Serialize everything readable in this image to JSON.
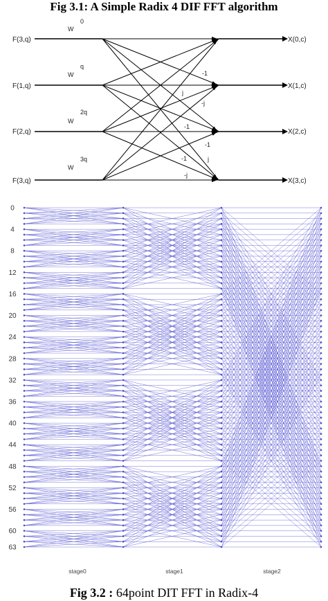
{
  "fig1": {
    "title": "Fig 3.1: A Simple Radix 4 DIF FFT algorithm",
    "inputs": [
      "F(3,q)",
      "F(1,q)",
      "F(2,q)",
      "F(3,q)"
    ],
    "outputs": [
      "X(0,c)",
      "X(1,c)",
      "X(2,c)",
      "X(3,c)"
    ],
    "twiddles": [
      {
        "base": "W",
        "exp": "0"
      },
      {
        "base": "W",
        "exp": "q"
      },
      {
        "base": "W",
        "exp": "2q"
      },
      {
        "base": "W",
        "exp": "3q"
      }
    ],
    "branch_labels": [
      "-1",
      "j",
      "-j",
      "-1",
      "-1",
      "-1",
      "j",
      "-j"
    ]
  },
  "fig2": {
    "title_prefix": "Fig 3.2 :",
    "title_text": " 64point DIT FFT in Radix-4",
    "y_ticks": [
      "0",
      "4",
      "8",
      "12",
      "16",
      "20",
      "24",
      "28",
      "32",
      "36",
      "40",
      "44",
      "48",
      "52",
      "56",
      "60",
      "63"
    ],
    "stages": [
      "stage0",
      "stage1",
      "stage2"
    ],
    "line_color": "#4a4ad0"
  }
}
